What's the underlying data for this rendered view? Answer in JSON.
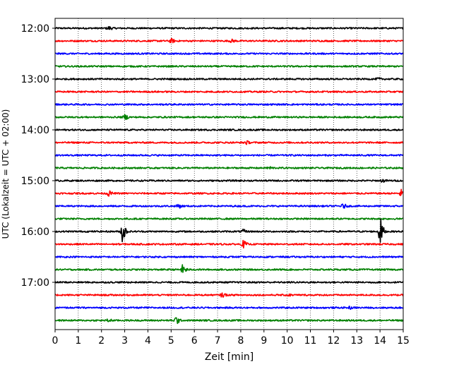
{
  "chart_data": {
    "type": "line",
    "title": "",
    "xlabel": "Zeit  [min]",
    "ylabel": "UTC (Lokalzeit = UTC + 02:00)",
    "xlim": [
      0,
      15
    ],
    "x_ticks": [
      0,
      1,
      2,
      3,
      4,
      5,
      6,
      7,
      8,
      9,
      10,
      11,
      12,
      13,
      14,
      15
    ],
    "x_tick_labels": [
      "0",
      "1",
      "2",
      "3",
      "4",
      "5",
      "6",
      "7",
      "8",
      "9",
      "10",
      "11",
      "12",
      "13",
      "14",
      "15"
    ],
    "y_tick_labels": [
      "12:00",
      "13:00",
      "14:00",
      "15:00",
      "16:00",
      "17:00"
    ],
    "y_tick_rows": [
      0,
      4,
      8,
      12,
      16,
      20
    ],
    "grid": "vertical dotted",
    "line_colors": [
      "#000000",
      "#ff0000",
      "#0000ff",
      "#008000"
    ],
    "traces": [
      {
        "start": "12:00",
        "events": [
          {
            "x": 2.3,
            "amp": 0.25
          }
        ]
      },
      {
        "start": "12:15",
        "events": [
          {
            "x": 5.0,
            "amp": 0.3
          },
          {
            "x": 7.6,
            "amp": 0.2
          }
        ]
      },
      {
        "start": "12:30",
        "events": []
      },
      {
        "start": "12:45",
        "events": []
      },
      {
        "start": "13:00",
        "events": [
          {
            "x": 13.9,
            "amp": 0.15
          }
        ]
      },
      {
        "start": "13:15",
        "events": []
      },
      {
        "start": "13:30",
        "events": []
      },
      {
        "start": "13:45",
        "events": [
          {
            "x": 3.0,
            "amp": 0.35
          }
        ]
      },
      {
        "start": "14:00",
        "events": []
      },
      {
        "start": "14:15",
        "events": [
          {
            "x": 8.2,
            "amp": 0.25
          }
        ]
      },
      {
        "start": "14:30",
        "events": []
      },
      {
        "start": "14:45",
        "events": [
          {
            "x": 9.2,
            "amp": 0.2
          }
        ]
      },
      {
        "start": "15:00",
        "events": [
          {
            "x": 14.1,
            "amp": 0.2
          }
        ]
      },
      {
        "start": "15:15",
        "events": [
          {
            "x": 2.3,
            "amp": 0.35
          },
          {
            "x": 14.9,
            "amp": 0.55
          }
        ]
      },
      {
        "start": "15:30",
        "events": [
          {
            "x": 5.3,
            "amp": 0.3
          },
          {
            "x": 12.4,
            "amp": 0.3
          }
        ]
      },
      {
        "start": "15:45",
        "events": []
      },
      {
        "start": "16:00",
        "events": [
          {
            "x": 2.9,
            "amp": 1.6
          },
          {
            "x": 8.1,
            "amp": 0.25
          },
          {
            "x": 14.0,
            "amp": 2.0
          }
        ]
      },
      {
        "start": "16:15",
        "events": [
          {
            "x": 8.1,
            "amp": 0.5
          }
        ]
      },
      {
        "start": "16:30",
        "events": []
      },
      {
        "start": "16:45",
        "events": [
          {
            "x": 5.5,
            "amp": 0.7
          }
        ]
      },
      {
        "start": "17:00",
        "events": []
      },
      {
        "start": "17:15",
        "events": [
          {
            "x": 7.2,
            "amp": 0.3
          },
          {
            "x": 10.0,
            "amp": 0.2
          }
        ]
      },
      {
        "start": "17:30",
        "events": [
          {
            "x": 12.7,
            "amp": 0.15
          }
        ]
      },
      {
        "start": "17:45",
        "events": [
          {
            "x": 5.2,
            "amp": 0.6
          },
          {
            "x": 2.3,
            "amp": 0.2
          }
        ]
      }
    ]
  }
}
